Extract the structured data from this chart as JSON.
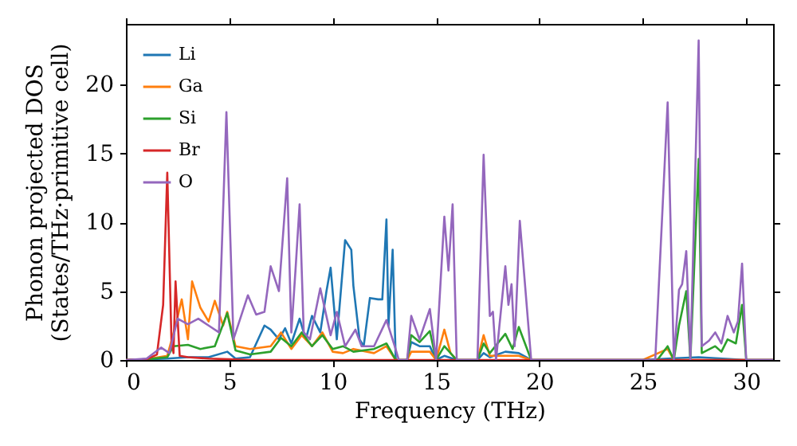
{
  "chart_data": {
    "type": "line",
    "xlabel": "Frequency (THz)",
    "ylabel": "Phonon projected DOS\n(States/THz·primitive cell)",
    "xlim": [
      0,
      31.3
    ],
    "ylim": [
      0,
      24.4
    ],
    "xticks": [
      0,
      5,
      10,
      15,
      20,
      25,
      30
    ],
    "yticks": [
      0,
      5,
      10,
      15,
      20
    ],
    "grid": false,
    "legend": "top left",
    "series": [
      {
        "name": "Li",
        "color": "#1f77b4",
        "x": [
          0,
          1,
          2,
          3,
          4,
          4.9,
          5.3,
          6,
          6.7,
          7.0,
          7.4,
          7.7,
          8.0,
          8.4,
          8.7,
          9.0,
          9.4,
          9.7,
          9.9,
          10.2,
          10.6,
          10.9,
          11.0,
          11.3,
          11.5,
          11.8,
          12.2,
          12.4,
          12.6,
          12.7,
          12.9,
          13.05,
          13.6,
          13.8,
          14.2,
          14.7,
          15.0,
          15.4,
          16.0,
          17.0,
          17.3,
          17.6,
          18.35,
          19.0,
          19.6,
          25,
          26.2,
          27.7,
          30,
          31.3
        ],
        "values": [
          0,
          0.05,
          0.1,
          0.2,
          0.2,
          0.6,
          0.1,
          0.2,
          2.5,
          2.2,
          1.5,
          2.3,
          1.2,
          3.0,
          1.5,
          3.2,
          2.0,
          5.0,
          6.7,
          1.5,
          8.7,
          8.0,
          5.4,
          1.5,
          1.0,
          4.5,
          4.4,
          4.4,
          10.2,
          2.5,
          8.0,
          0,
          0,
          1.3,
          1.0,
          1.0,
          0,
          0.3,
          0,
          0,
          0.5,
          0.2,
          0.6,
          0.5,
          0,
          0,
          0.1,
          0.2,
          0,
          0
        ]
      },
      {
        "name": "Ga",
        "color": "#ff7f0e",
        "x": [
          0,
          1,
          2,
          2.4,
          2.7,
          3.0,
          3.2,
          3.6,
          4.0,
          4.3,
          4.7,
          4.9,
          5.3,
          6,
          7,
          7.5,
          8,
          8.5,
          9,
          9.5,
          10,
          10.5,
          11,
          12,
          12.6,
          13.05,
          13.6,
          13.8,
          14.7,
          15.0,
          15.4,
          15.7,
          16.0,
          17.0,
          17.3,
          17.6,
          18.35,
          19.0,
          19.6,
          25,
          26.2,
          26.5,
          31.3
        ],
        "values": [
          0,
          0.05,
          0.3,
          2.5,
          4.4,
          1.5,
          5.7,
          3.8,
          2.8,
          4.3,
          2.5,
          3.5,
          1.0,
          0.8,
          1.0,
          2.0,
          0.8,
          1.8,
          1.0,
          2.0,
          0.6,
          0.5,
          0.8,
          0.5,
          1.0,
          0,
          0,
          0.6,
          0.6,
          0,
          2.2,
          0.5,
          0,
          0,
          1.8,
          0.3,
          0.3,
          0.3,
          0,
          0,
          0.8,
          0,
          0
        ]
      },
      {
        "name": "Si",
        "color": "#2ca02c",
        "x": [
          0,
          1,
          2,
          2.3,
          3,
          3.6,
          4.3,
          4.9,
          5.3,
          6,
          7,
          7.5,
          8,
          8.5,
          9,
          9.5,
          10,
          10.5,
          11,
          12,
          12.6,
          13.05,
          13.6,
          13.8,
          14.2,
          14.7,
          15.0,
          15.4,
          16.0,
          17.0,
          17.3,
          17.6,
          18.35,
          18.7,
          19.0,
          19.6,
          25.7,
          26.2,
          26.5,
          26.75,
          27.1,
          27.3,
          27.7,
          27.85,
          28.5,
          28.8,
          29.1,
          29.5,
          29.8,
          30.0,
          31.3
        ],
        "values": [
          0,
          0.05,
          0.2,
          1.0,
          1.1,
          0.8,
          1.0,
          3.4,
          0.7,
          0.4,
          0.6,
          1.6,
          1.0,
          2.0,
          1.0,
          1.8,
          0.8,
          1.0,
          0.6,
          0.8,
          1.2,
          0,
          0,
          1.8,
          1.3,
          2.1,
          0,
          1.0,
          0,
          0,
          1.2,
          0.5,
          1.9,
          0.8,
          2.4,
          0,
          0,
          1.0,
          0,
          2.5,
          5.0,
          0,
          14.6,
          0.5,
          1.0,
          0.6,
          1.5,
          1.2,
          4.0,
          0,
          0
        ]
      },
      {
        "name": "Br",
        "color": "#d62728",
        "x": [
          0,
          1,
          1.5,
          1.8,
          2.0,
          2.2,
          2.3,
          2.4,
          2.6,
          3,
          4,
          5,
          6,
          31.3
        ],
        "values": [
          0,
          0.05,
          0.4,
          4,
          13.6,
          1.5,
          0.5,
          5.7,
          0.3,
          0.2,
          0.1,
          0.05,
          0,
          0
        ]
      },
      {
        "name": "O",
        "color": "#9467bd",
        "x": [
          0,
          1,
          1.7,
          2.1,
          2.5,
          3.0,
          3.5,
          4.0,
          4.5,
          4.86,
          5.2,
          5.9,
          6.3,
          6.7,
          7.0,
          7.4,
          7.8,
          8.0,
          8.2,
          8.4,
          8.6,
          8.9,
          9.4,
          9.9,
          10.2,
          10.6,
          11.1,
          11.4,
          12.0,
          12.6,
          13.0,
          13.2,
          13.6,
          13.8,
          14.2,
          14.7,
          15.0,
          15.4,
          15.6,
          15.8,
          16.0,
          17.0,
          17.3,
          17.6,
          17.75,
          17.9,
          18.35,
          18.5,
          18.65,
          18.8,
          19.05,
          19.6,
          25.6,
          26.2,
          26.5,
          26.75,
          26.9,
          27.1,
          27.3,
          27.7,
          27.85,
          28.2,
          28.5,
          28.8,
          29.1,
          29.4,
          29.6,
          29.8,
          30.0,
          31.3
        ],
        "values": [
          0,
          0.1,
          0.9,
          0.5,
          3.0,
          2.6,
          3.0,
          2.5,
          2.0,
          18.0,
          1.5,
          4.7,
          3.3,
          3.5,
          6.8,
          5.0,
          13.2,
          2.0,
          6.5,
          11.3,
          2.0,
          1.5,
          5.2,
          1.8,
          3.5,
          1.0,
          2.2,
          1.0,
          1.0,
          2.9,
          1.0,
          0,
          0,
          3.2,
          1.5,
          3.7,
          0,
          10.4,
          6.5,
          11.3,
          0,
          0,
          14.9,
          3.2,
          3.5,
          0,
          6.8,
          4.0,
          5.5,
          1.0,
          10.1,
          0,
          0,
          18.7,
          0,
          5.1,
          5.5,
          7.9,
          0,
          23.2,
          1.0,
          1.4,
          2.0,
          1.2,
          3.2,
          2.0,
          2.8,
          7.0,
          0,
          0
        ]
      }
    ]
  }
}
